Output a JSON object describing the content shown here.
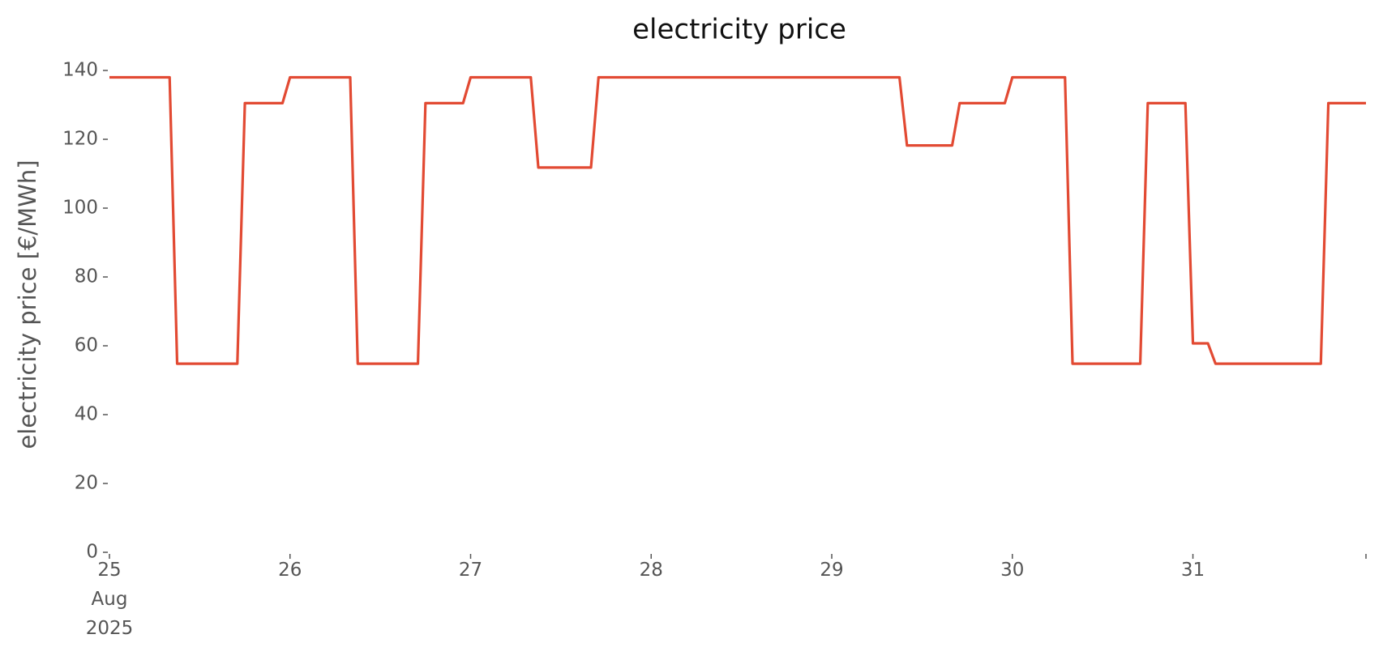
{
  "chart_data": {
    "type": "line",
    "title": "electricity price",
    "y_label": "electricity price [€/MWh]",
    "x": [
      "2025-08-25T00:00",
      "2025-08-25T08:00",
      "2025-08-25T09:00",
      "2025-08-25T17:00",
      "2025-08-25T18:00",
      "2025-08-25T23:00",
      "2025-08-26T00:00",
      "2025-08-26T08:00",
      "2025-08-26T09:00",
      "2025-08-26T17:00",
      "2025-08-26T18:00",
      "2025-08-26T23:00",
      "2025-08-27T00:00",
      "2025-08-27T08:00",
      "2025-08-27T09:00",
      "2025-08-27T16:00",
      "2025-08-27T17:00",
      "2025-08-29T09:00",
      "2025-08-29T10:00",
      "2025-08-29T16:00",
      "2025-08-29T17:00",
      "2025-08-29T23:00",
      "2025-08-30T00:00",
      "2025-08-30T07:00",
      "2025-08-30T08:00",
      "2025-08-30T17:00",
      "2025-08-30T18:00",
      "2025-08-30T23:00",
      "2025-08-31T00:00",
      "2025-08-31T02:00",
      "2025-08-31T03:00",
      "2025-08-31T17:00",
      "2025-08-31T18:00",
      "2025-08-31T23:00"
    ],
    "series": [
      {
        "name": "electricity price",
        "color": "#e24a33",
        "values": [
          138,
          138,
          54.8,
          54.8,
          130.5,
          130.5,
          138,
          138,
          54.8,
          54.8,
          130.5,
          130.5,
          138,
          138,
          111.8,
          111.8,
          138,
          138,
          118.2,
          118.2,
          130.5,
          130.5,
          138,
          138,
          54.8,
          54.8,
          130.5,
          130.5,
          60.7,
          60.7,
          54.8,
          54.8,
          130.5,
          130.5
        ]
      }
    ],
    "xlim": [
      "2025-08-25T00:00",
      "2025-08-31T23:00"
    ],
    "xticks": [
      {
        "value": "2025-08-25T00:00",
        "label": "25\nAug\n2025"
      },
      {
        "value": "2025-08-26T00:00",
        "label": "26"
      },
      {
        "value": "2025-08-27T00:00",
        "label": "27"
      },
      {
        "value": "2025-08-28T00:00",
        "label": "28"
      },
      {
        "value": "2025-08-29T00:00",
        "label": "29"
      },
      {
        "value": "2025-08-30T00:00",
        "label": "30"
      },
      {
        "value": "2025-08-31T00:00",
        "label": "31"
      },
      {
        "value": "2025-08-31T23:00",
        "label": null
      }
    ],
    "ylim": [
      0,
      140
    ],
    "yticks": [
      0,
      20,
      40,
      60,
      80,
      100,
      120,
      140
    ],
    "grid": false
  }
}
